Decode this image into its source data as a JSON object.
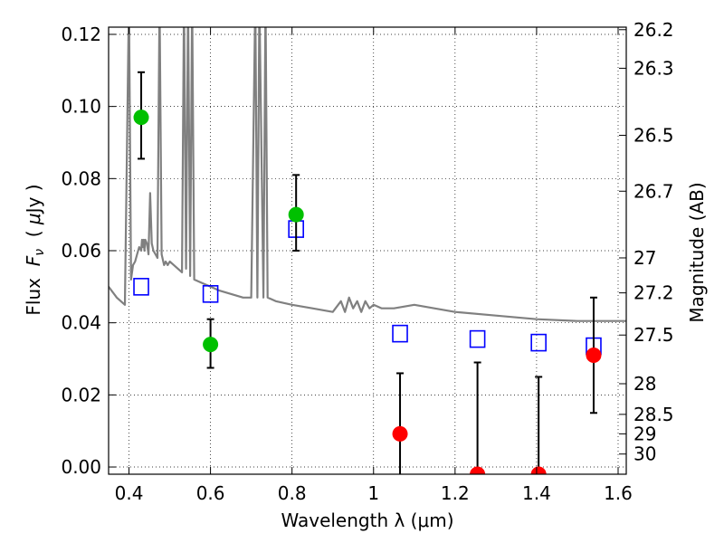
{
  "chart_data": {
    "type": "scatter",
    "xlabel": "Wavelength  λ (μm)",
    "ylabel_parts": {
      "prefix": "Flux  ",
      "var": "F",
      "sub": "ν",
      "mid": "  ( ",
      "mu": "μ",
      "unit": "Jy )"
    },
    "y2label": "Magnitude (AB)",
    "xlim": [
      0.35,
      1.62
    ],
    "ylim": [
      -0.002,
      0.122
    ],
    "grid": true,
    "x_ticks": [
      0.4,
      0.6,
      0.8,
      1.0,
      1.2,
      1.4,
      1.6
    ],
    "x_tick_labels": [
      "0.4",
      "0.6",
      "0.8",
      "1",
      "1.2",
      "1.4",
      "1.6"
    ],
    "y_ticks": [
      0.0,
      0.02,
      0.04,
      0.06,
      0.08,
      0.1,
      0.12
    ],
    "y_tick_labels": [
      "0.00",
      "0.02",
      "0.04",
      "0.06",
      "0.08",
      "0.10",
      "0.12"
    ],
    "mag_ticks": [
      {
        "label": "26.2",
        "flux": 0.1213
      },
      {
        "label": "26.3",
        "flux": 0.1106
      },
      {
        "label": "26.5",
        "flux": 0.092
      },
      {
        "label": "26.7",
        "flux": 0.0765
      },
      {
        "label": "27",
        "flux": 0.058
      },
      {
        "label": "27.2",
        "flux": 0.0483
      },
      {
        "label": "27.5",
        "flux": 0.0366
      },
      {
        "label": "28",
        "flux": 0.0231
      },
      {
        "label": "28.5",
        "flux": 0.0146
      },
      {
        "label": "29",
        "flux": 0.0092
      },
      {
        "label": "30",
        "flux": 0.0036
      }
    ],
    "series": [
      {
        "kind": "spectrum",
        "color": "#808080",
        "x": [
          0.35,
          0.37,
          0.39,
          0.4,
          0.405,
          0.41,
          0.415,
          0.42,
          0.425,
          0.43,
          0.432,
          0.434,
          0.436,
          0.438,
          0.44,
          0.444,
          0.448,
          0.452,
          0.456,
          0.46,
          0.465,
          0.47,
          0.475,
          0.48,
          0.484,
          0.486,
          0.49,
          0.495,
          0.5,
          0.51,
          0.52,
          0.53,
          0.535,
          0.54,
          0.545,
          0.55,
          0.555,
          0.56,
          0.58,
          0.6,
          0.62,
          0.65,
          0.68,
          0.7,
          0.71,
          0.715,
          0.72,
          0.73,
          0.735,
          0.74,
          0.76,
          0.8,
          0.85,
          0.9,
          0.92,
          0.93,
          0.94,
          0.95,
          0.96,
          0.97,
          0.98,
          0.99,
          1.0,
          1.02,
          1.05,
          1.1,
          1.2,
          1.3,
          1.4,
          1.5,
          1.6,
          1.62
        ],
        "y": [
          0.05,
          0.047,
          0.045,
          0.13,
          0.052,
          0.056,
          0.057,
          0.059,
          0.061,
          0.06,
          0.063,
          0.061,
          0.063,
          0.06,
          0.063,
          0.062,
          0.059,
          0.076,
          0.062,
          0.06,
          0.059,
          0.058,
          0.13,
          0.059,
          0.057,
          0.056,
          0.057,
          0.056,
          0.057,
          0.056,
          0.055,
          0.054,
          0.13,
          0.055,
          0.13,
          0.053,
          0.13,
          0.052,
          0.051,
          0.05,
          0.049,
          0.048,
          0.047,
          0.047,
          0.13,
          0.047,
          0.13,
          0.047,
          0.13,
          0.047,
          0.046,
          0.045,
          0.044,
          0.043,
          0.046,
          0.043,
          0.047,
          0.044,
          0.046,
          0.043,
          0.046,
          0.044,
          0.045,
          0.044,
          0.044,
          0.045,
          0.043,
          0.042,
          0.041,
          0.0405,
          0.0405,
          0.0405
        ]
      },
      {
        "kind": "model_flux",
        "marker": "open-square",
        "color": "#0000ff",
        "x": [
          0.43,
          0.6,
          0.81,
          1.065,
          1.255,
          1.405,
          1.54
        ],
        "y": [
          0.05,
          0.048,
          0.066,
          0.037,
          0.0355,
          0.0345,
          0.0335
        ]
      },
      {
        "kind": "detection",
        "marker": "filled-circle",
        "color": "#00c000",
        "x": [
          0.43,
          0.6,
          0.81
        ],
        "y": [
          0.097,
          0.034,
          0.07
        ],
        "yerr_low": [
          0.0855,
          0.0275,
          0.06
        ],
        "yerr_high": [
          0.1095,
          0.041,
          0.081
        ]
      },
      {
        "kind": "non_detection",
        "marker": "filled-circle",
        "color": "#ff0000",
        "x": [
          1.065,
          1.255,
          1.405,
          1.54
        ],
        "y": [
          0.0092,
          -0.002,
          -0.002,
          0.031
        ],
        "yerr_low": [
          -0.004,
          -0.004,
          -0.004,
          0.015
        ],
        "yerr_high": [
          0.026,
          0.029,
          0.025,
          0.047
        ]
      }
    ]
  }
}
